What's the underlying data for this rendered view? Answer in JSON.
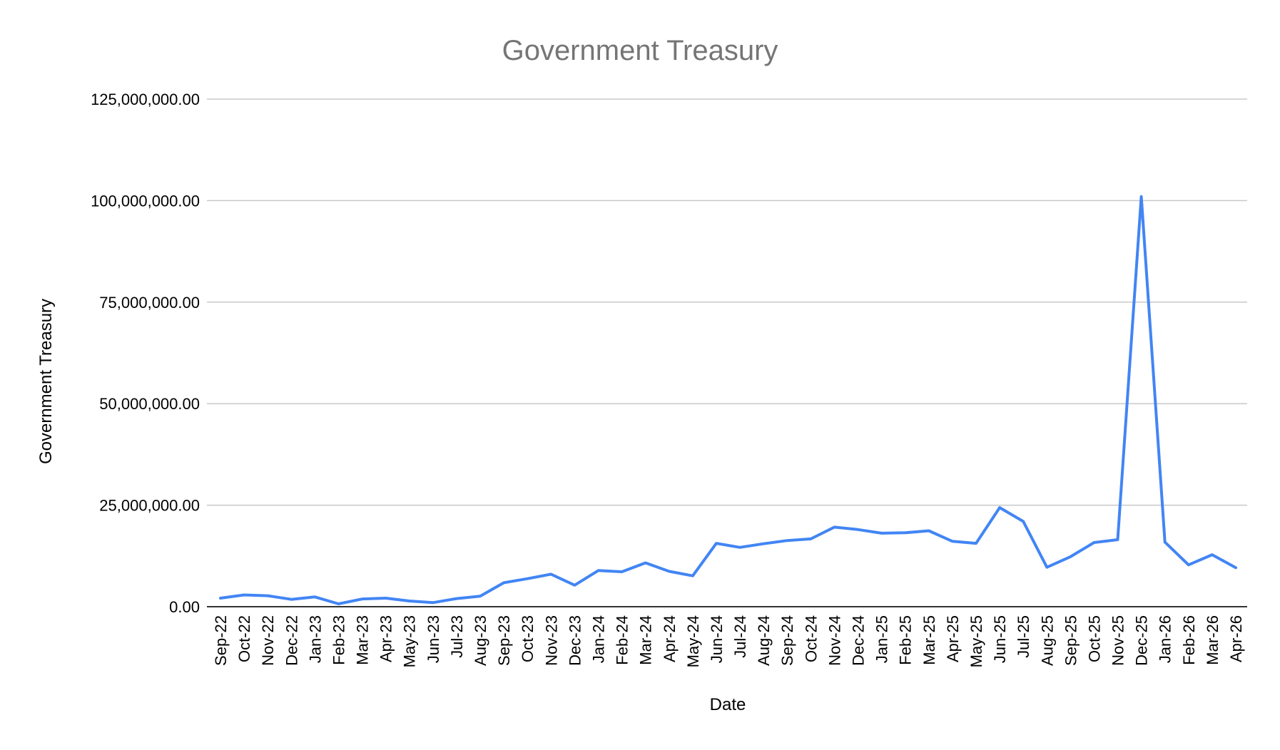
{
  "chart_data": {
    "type": "line",
    "title": "Government Treasury",
    "xlabel": "Date",
    "ylabel": "Government Treasury",
    "ylim": [
      0,
      125000000
    ],
    "yticks": [
      0,
      25000000,
      50000000,
      75000000,
      100000000,
      125000000
    ],
    "ytick_labels": [
      "0.00",
      "25,000,000.00",
      "50,000,000.00",
      "75,000,000.00",
      "100,000,000.00",
      "125,000,000.00"
    ],
    "grid": true,
    "legend": "none",
    "series_color": "#4285f4",
    "categories": [
      "Sep-22",
      "Oct-22",
      "Nov-22",
      "Dec-22",
      "Jan-23",
      "Feb-23",
      "Mar-23",
      "Apr-23",
      "May-23",
      "Jun-23",
      "Jul-23",
      "Aug-23",
      "Sep-23",
      "Oct-23",
      "Nov-23",
      "Dec-23",
      "Jan-24",
      "Feb-24",
      "Mar-24",
      "Apr-24",
      "May-24",
      "Jun-24",
      "Jul-24",
      "Aug-24",
      "Sep-24",
      "Oct-24",
      "Nov-24",
      "Dec-24",
      "Jan-25",
      "Feb-25",
      "Mar-25",
      "Apr-25",
      "May-25",
      "Jun-25",
      "Jul-25",
      "Aug-25",
      "Sep-25",
      "Oct-25",
      "Nov-25",
      "Dec-25",
      "Jan-26",
      "Feb-26",
      "Mar-26",
      "Apr-26"
    ],
    "series": [
      {
        "values": [
          2100000,
          2900000,
          2700000,
          1800000,
          2400000,
          700000,
          1900000,
          2100000,
          1400000,
          1000000,
          2000000,
          2600000,
          5900000,
          6900000,
          8000000,
          5300000,
          8900000,
          8600000,
          10800000,
          8700000,
          7600000,
          15600000,
          14600000,
          15500000,
          16300000,
          16700000,
          19600000,
          19000000,
          18100000,
          18200000,
          18700000,
          16100000,
          15600000,
          24400000,
          21000000,
          9700000,
          12300000,
          15800000,
          16500000,
          101000000,
          15900000,
          10300000,
          12800000,
          9600000
        ]
      }
    ]
  }
}
